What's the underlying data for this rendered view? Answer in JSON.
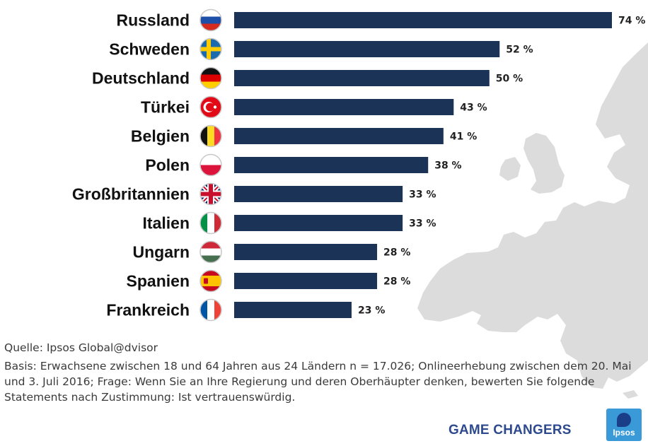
{
  "chart_data": {
    "type": "bar",
    "orientation": "horizontal",
    "categories": [
      "Russland",
      "Schweden",
      "Deutschland",
      "Türkei",
      "Belgien",
      "Polen",
      "Großbritannien",
      "Italien",
      "Ungarn",
      "Spanien",
      "Frankreich"
    ],
    "values": [
      74,
      52,
      50,
      43,
      41,
      38,
      33,
      33,
      28,
      28,
      23
    ],
    "value_labels": [
      "74 %",
      "52 %",
      "50 %",
      "43 %",
      "41 %",
      "38 %",
      "33 %",
      "33 %",
      "28 %",
      "28 %",
      "23 %"
    ],
    "flag_icons": [
      "flag-russia-icon",
      "flag-sweden-icon",
      "flag-germany-icon",
      "flag-turkey-icon",
      "flag-belgium-icon",
      "flag-poland-icon",
      "flag-uk-icon",
      "flag-italy-icon",
      "flag-hungary-icon",
      "flag-spain-icon",
      "flag-france-icon"
    ],
    "xlim": [
      0,
      74
    ],
    "bar_color": "#1c3358",
    "grid": false,
    "legend": "none"
  },
  "footnote": {
    "source": "Quelle: Ipsos Global@dvisor",
    "basis": "Basis: Erwachsene zwischen 18 und 64 Jahren aus 24 Ländern n = 17.026; Onlineerhebung zwischen dem 20. Mai und 3. Juli 2016; Frage: Wenn Sie an Ihre Regierung und deren Oberhäupter denken, bewerten Sie folgende Statements nach Zustimmung: Ist vertrauenswürdig."
  },
  "branding": {
    "tagline": "GAME CHANGERS",
    "logo_text": "Ipsos",
    "tagline_color": "#2e4a8f",
    "logo_color": "#3a9ad8"
  },
  "background": {
    "map_icon": "europe-map-icon",
    "map_color": "#d9d9d9"
  }
}
